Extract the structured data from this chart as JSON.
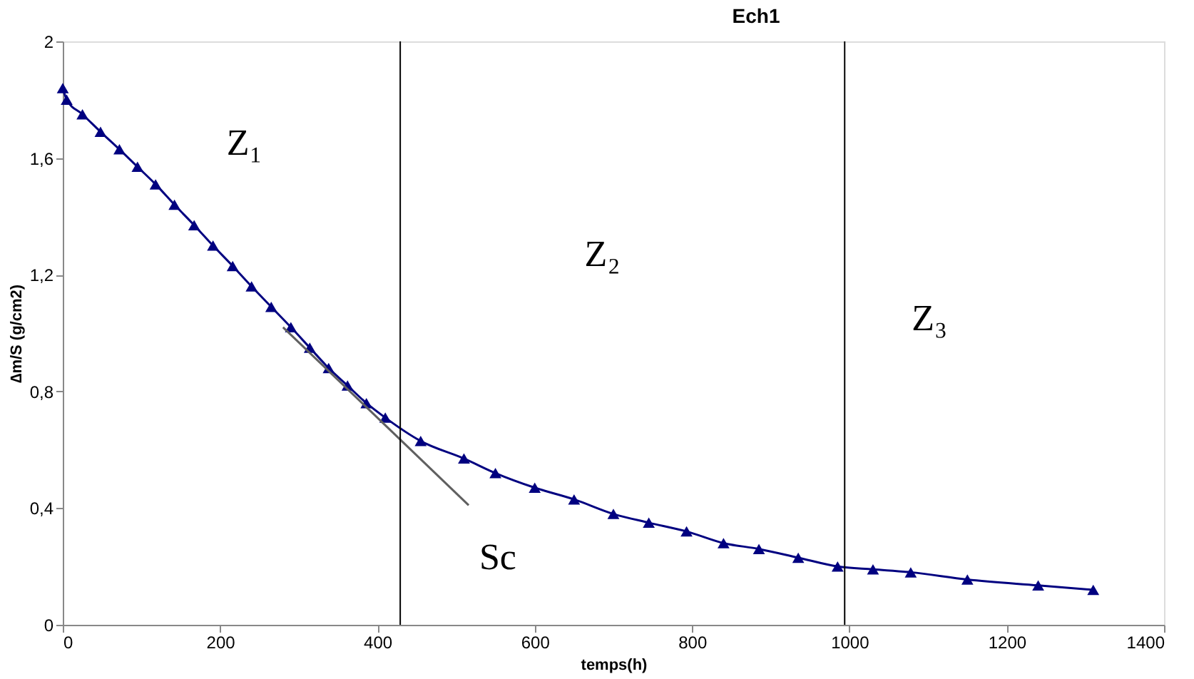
{
  "chart_data": {
    "type": "line",
    "title": "Ech1",
    "xlabel": "temps(h)",
    "ylabel": "∆m/S (g/cm2)",
    "xlim": [
      0,
      1400
    ],
    "xticks": [
      0,
      200,
      400,
      600,
      800,
      1000,
      1200,
      1400
    ],
    "ylim": [
      0,
      2
    ],
    "yticks": [
      0,
      {
        "value": 0.4,
        "label": "0,4"
      },
      {
        "value": 0.8,
        "label": "0,8"
      },
      {
        "value": 1.2,
        "label": "1,2"
      },
      {
        "value": 1.6,
        "label": "1,6"
      },
      2
    ],
    "grid": false,
    "marker": "triangle",
    "line_style": "solid",
    "series": [
      {
        "color": "#000080",
        "x": [
          0,
          5,
          25,
          48,
          72,
          95,
          118,
          142,
          167,
          191,
          216,
          240,
          265,
          290,
          314,
          338,
          362,
          386,
          410,
          455,
          510,
          550,
          600,
          650,
          700,
          745,
          793,
          840,
          885,
          935,
          985,
          1030,
          1078,
          1150,
          1240,
          1310
        ],
        "values": [
          1.84,
          1.8,
          1.75,
          1.69,
          1.63,
          1.57,
          1.51,
          1.44,
          1.37,
          1.3,
          1.23,
          1.16,
          1.09,
          1.02,
          0.95,
          0.88,
          0.82,
          0.76,
          0.71,
          0.63,
          0.57,
          0.52,
          0.47,
          0.43,
          0.38,
          0.35,
          0.32,
          0.28,
          0.26,
          0.23,
          0.2,
          0.19,
          0.18,
          0.155,
          0.135,
          0.12
        ]
      },
      {
        "type": "line",
        "color": "#606060",
        "marker": "none",
        "x": [
          280,
          516
        ],
        "values": [
          1.02,
          0.41
        ]
      }
    ],
    "ref_lines": [
      {
        "axis": "x",
        "value": 429,
        "color": "#000000"
      },
      {
        "axis": "x",
        "value": 994,
        "color": "#000000"
      }
    ],
    "annotations": [
      "Z₁",
      "Z₂",
      "Z₃",
      "Sc"
    ]
  }
}
